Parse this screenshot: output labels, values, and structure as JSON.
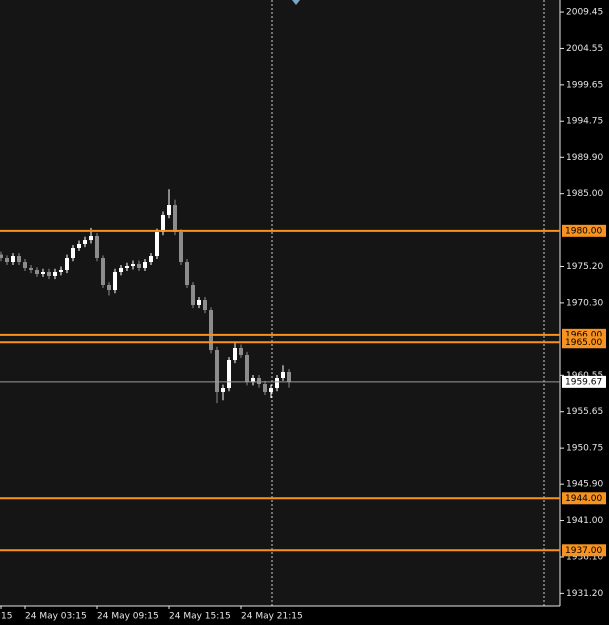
{
  "chart_data": {
    "type": "candlestick",
    "categories": [
      "15",
      null,
      null,
      null,
      "24 May 03:15",
      null,
      null,
      null,
      null,
      null,
      null,
      null,
      null,
      null,
      null,
      null,
      "24 May 09:15",
      null,
      null,
      null,
      null,
      null,
      null,
      null,
      null,
      null,
      null,
      null,
      "24 May 15:15",
      null,
      null,
      null,
      null,
      null,
      null,
      null,
      null,
      null,
      null,
      null,
      "24 May 21:15",
      null,
      null,
      null,
      null,
      null,
      null,
      null,
      null
    ],
    "open": [
      1976.8,
      1976.34,
      1975.8,
      1976.61,
      1975.8,
      1975.0,
      1974.73,
      1974.19,
      1974.46,
      1973.92,
      1974.46,
      1974.73,
      1976.34,
      1977.69,
      1978.23,
      1978.76,
      1979.3,
      1976.34,
      1972.71,
      1972.03,
      1974.46,
      1975.0,
      1975.26,
      1975.53,
      1975.0,
      1975.8,
      1976.61,
      1979.84,
      1982.13,
      1983.47,
      1979.84,
      1975.8,
      1972.71,
      1970.02,
      1970.69,
      1969.34,
      1963.96,
      1958.31,
      1958.84,
      1962.61,
      1964.23,
      1963.29,
      1959.65,
      1960.19,
      1959.38,
      1958.31,
      1958.84,
      1960.19,
      1961.0
    ],
    "high": [
      1977.2,
      1976.7,
      1977.0,
      1977.0,
      1976.2,
      1975.4,
      1975.1,
      1974.9,
      1974.9,
      1974.9,
      1975.2,
      1976.8,
      1978.1,
      1978.7,
      1979.2,
      1980.4,
      1979.7,
      1976.7,
      1973.1,
      1974.9,
      1975.4,
      1975.7,
      1976.0,
      1976.0,
      1976.2,
      1977.0,
      1980.3,
      1982.6,
      1985.6,
      1984.2,
      1980.2,
      1976.2,
      1973.1,
      1971.1,
      1971.1,
      1969.7,
      1964.4,
      1959.3,
      1963.0,
      1965.0,
      1964.7,
      1963.7,
      1960.6,
      1960.6,
      1959.8,
      1959.3,
      1960.6,
      1961.9,
      1961.4
    ],
    "low": [
      1975.9,
      1975.4,
      1975.4,
      1975.4,
      1974.6,
      1974.3,
      1973.8,
      1973.8,
      1973.5,
      1973.5,
      1974.0,
      1974.3,
      1975.9,
      1977.3,
      1977.8,
      1978.3,
      1975.9,
      1972.3,
      1971.3,
      1971.6,
      1974.0,
      1974.6,
      1974.8,
      1974.6,
      1974.6,
      1975.4,
      1976.2,
      1979.4,
      1981.7,
      1979.4,
      1975.4,
      1972.3,
      1969.6,
      1969.6,
      1968.9,
      1963.5,
      1956.8,
      1957.2,
      1958.4,
      1962.2,
      1962.9,
      1959.2,
      1959.2,
      1958.9,
      1957.9,
      1957.5,
      1958.4,
      1959.8,
      1958.9
    ],
    "close": [
      1976.34,
      1975.8,
      1976.61,
      1975.8,
      1975.0,
      1974.73,
      1974.19,
      1974.46,
      1973.92,
      1974.46,
      1974.73,
      1976.34,
      1977.69,
      1978.23,
      1978.76,
      1979.3,
      1976.34,
      1972.71,
      1972.03,
      1974.46,
      1975.0,
      1975.26,
      1975.53,
      1975.0,
      1975.8,
      1976.61,
      1979.84,
      1982.13,
      1983.47,
      1979.84,
      1975.8,
      1972.71,
      1970.02,
      1970.69,
      1969.34,
      1963.96,
      1958.31,
      1958.84,
      1962.61,
      1964.23,
      1963.29,
      1959.65,
      1960.19,
      1959.38,
      1958.31,
      1958.84,
      1960.19,
      1961.0,
      1959.67
    ],
    "up_color": "#ffffff",
    "down_color": "#8c8c8c",
    "ylim": [
      1929.5,
      2011.07
    ],
    "yticks": [
      2009.45,
      2004.55,
      1999.65,
      1994.75,
      {
        "value": 1989.9,
        "label": "1989.90"
      },
      {
        "value": 1985,
        "label": "1985.00"
      },
      {
        "value": 1975.2,
        "label": "1975.20"
      },
      {
        "value": 1970.3,
        "label": "1970.30"
      },
      1960.55,
      1955.65,
      1950.75,
      {
        "value": 1945.9,
        "label": "1945.90"
      },
      {
        "value": 1941,
        "label": "1941.00"
      },
      {
        "value": 1936.1,
        "label": "1936.10"
      },
      {
        "value": 1931.2,
        "label": "1931.20"
      }
    ],
    "levels": [
      {
        "value": 1980,
        "label": "1980.00"
      },
      {
        "value": 1966,
        "label": "1966.00"
      },
      {
        "value": 1965,
        "label": "1965.00"
      },
      {
        "value": 1944,
        "label": "1944.00"
      },
      {
        "value": 1937,
        "label": "1937.00"
      }
    ],
    "level_color": "#f7931e",
    "current_price": {
      "value": 1959.67,
      "label": "1959.67"
    }
  }
}
